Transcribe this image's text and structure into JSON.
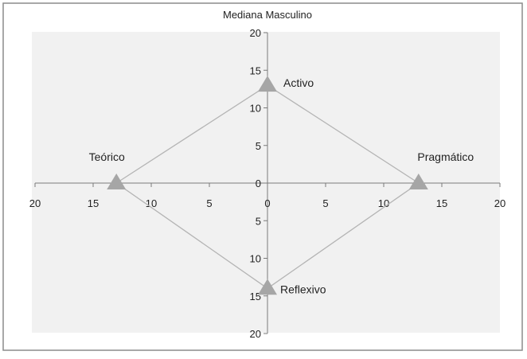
{
  "chart_data": {
    "type": "scatter",
    "title": "Mediana Masculino",
    "x_range": [
      -20,
      20
    ],
    "y_range": [
      -20,
      20
    ],
    "x_tick_values": [
      -20,
      -15,
      -10,
      -5,
      0,
      5,
      10,
      15,
      20
    ],
    "x_tick_labels": [
      "20",
      "15",
      "10",
      "5",
      "0",
      "5",
      "10",
      "15",
      "20"
    ],
    "y_tick_values": [
      20,
      15,
      10,
      5,
      0,
      -5,
      -10,
      -15,
      -20
    ],
    "y_tick_labels": [
      "20",
      "15",
      "10",
      "5",
      "0",
      "5",
      "10",
      "15",
      "20"
    ],
    "points": [
      {
        "label": "Activo",
        "x": 0,
        "y": 13
      },
      {
        "label": "Pragmático",
        "x": 13,
        "y": 0
      },
      {
        "label": "Reflexivo",
        "x": 0,
        "y": -14
      },
      {
        "label": "Teórico",
        "x": -13,
        "y": 0
      }
    ],
    "connect_points": true,
    "marker": "triangle",
    "colors": {
      "plot_background": "#f1f1f1",
      "marker": "#a6a6a6",
      "line": "#b4b4b4",
      "axis": "#7a7a7a",
      "border": "#8c8c8c"
    }
  }
}
